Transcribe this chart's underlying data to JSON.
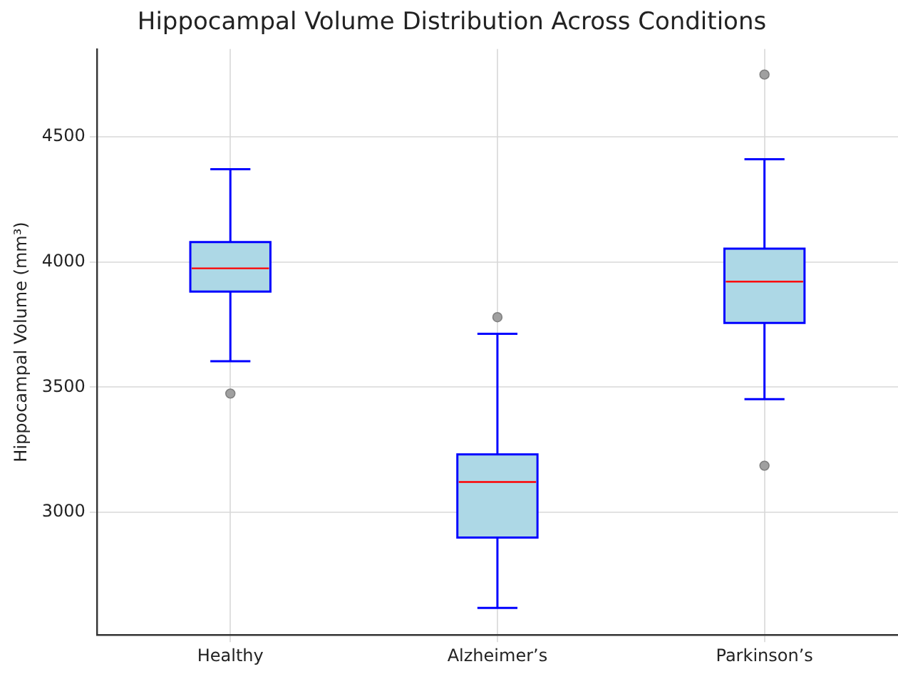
{
  "chart_data": {
    "type": "box",
    "title": "Hippocampal Volume Distribution Across Conditions",
    "ylabel": "Hippocampal Volume (mm³)",
    "categories": [
      "Healthy",
      "Alzheimer’s",
      "Parkinson’s"
    ],
    "color": "#add8e6",
    "boxes": [
      {
        "low": 3603,
        "q1": 3881,
        "median": 3974,
        "q3": 4079,
        "high": 4370,
        "outliers": [
          3474
        ]
      },
      {
        "low": 2618,
        "q1": 2899,
        "median": 3121,
        "q3": 3231,
        "high": 3713,
        "outliers": [
          3779
        ]
      },
      {
        "low": 3452,
        "q1": 3756,
        "median": 3921,
        "q3": 4053,
        "high": 4410,
        "outliers": [
          4748,
          3186
        ]
      }
    ],
    "ylim": [
      2510,
      4850
    ],
    "yticks": [
      3000,
      3500,
      4000,
      4500
    ],
    "grid": true
  }
}
